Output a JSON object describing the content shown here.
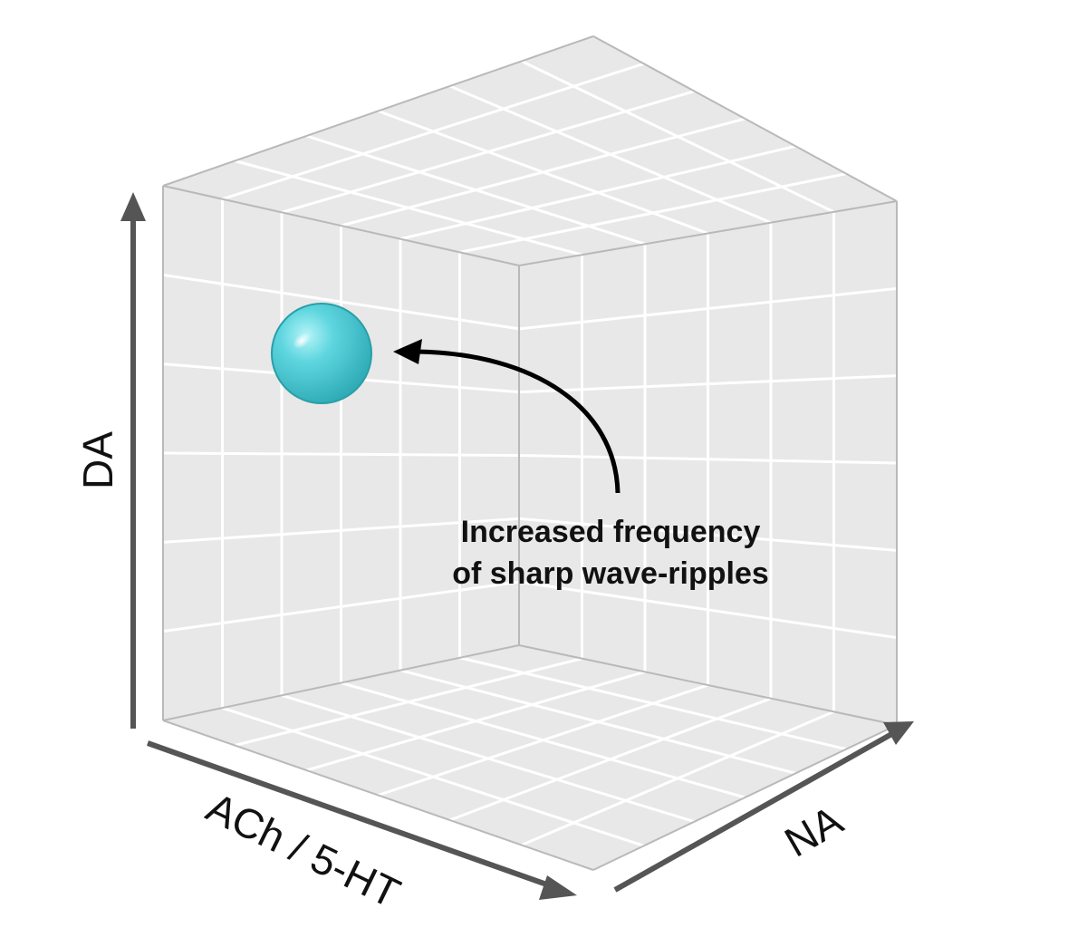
{
  "axes": {
    "vertical": "DA",
    "left_depth": "ACh / 5-HT",
    "right_depth": "NA"
  },
  "annotation": {
    "line1": "Increased frequency",
    "line2": "of sharp wave-ripples"
  },
  "colors": {
    "panel_fill": "#e8e8e8",
    "grid_line": "#ffffff",
    "cube_edge": "#b9b9b9",
    "axis_arrow": "#555555",
    "pointer_arrow": "#000000",
    "sphere": "#4ccfd9"
  },
  "icons": {
    "marker": "sphere-marker",
    "pointer": "curved-arrow"
  }
}
